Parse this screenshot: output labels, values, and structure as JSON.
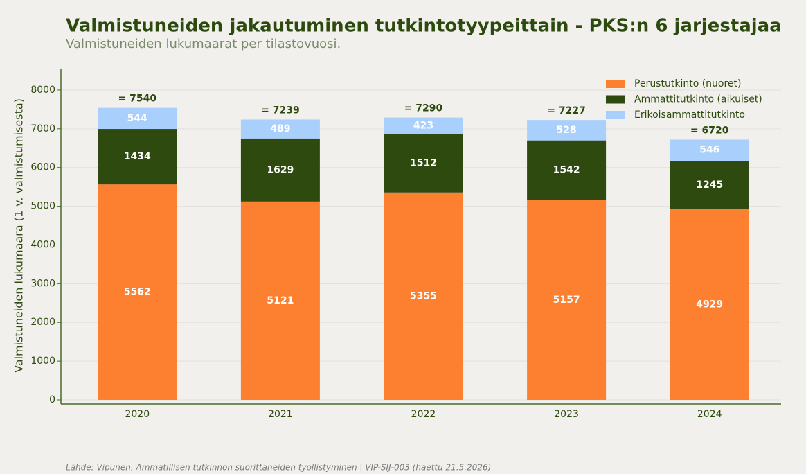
{
  "chart_data": {
    "type": "stacked_bar",
    "title": "Valmistuneiden jakautuminen tutkintotyypeittain - PKS:n 6 jarjestajaa",
    "subtitle": "Valmistuneiden lukumaarat per tilastovuosi.",
    "ylabel": "Valmistuneiden lukumaara (1 v. valmistumisesta)",
    "source": "Lähde: Vipunen, Ammatillisen tutkinnon suorittaneiden tyollistyminen | VIP-SIJ-003 (haettu 21.5.2026)",
    "categories": [
      "2020",
      "2021",
      "2022",
      "2023",
      "2024"
    ],
    "series": [
      {
        "name": "Perustutkinto (nuoret)",
        "color": "#fd7f30",
        "values": [
          5562,
          5121,
          5355,
          5157,
          4929
        ]
      },
      {
        "name": "Ammattitutkinto (aikuiset)",
        "color": "#2e4a0f",
        "values": [
          1434,
          1629,
          1512,
          1542,
          1245
        ]
      },
      {
        "name": "Erikoisammattitutkinto",
        "color": "#a9cffc",
        "values": [
          544,
          489,
          423,
          528,
          546
        ]
      }
    ],
    "totals": {
      "values": [
        7540,
        7239,
        7290,
        7227,
        6720
      ],
      "value_labels": [
        "= 7540",
        "= 7239",
        "= 7290",
        "= 7227",
        "= 6720"
      ]
    },
    "ylim": [
      0,
      8500
    ],
    "yticks": [
      0,
      1000,
      2000,
      3000,
      4000,
      5000,
      6000,
      7000,
      8000
    ],
    "grid": true,
    "legend": "upper right"
  }
}
